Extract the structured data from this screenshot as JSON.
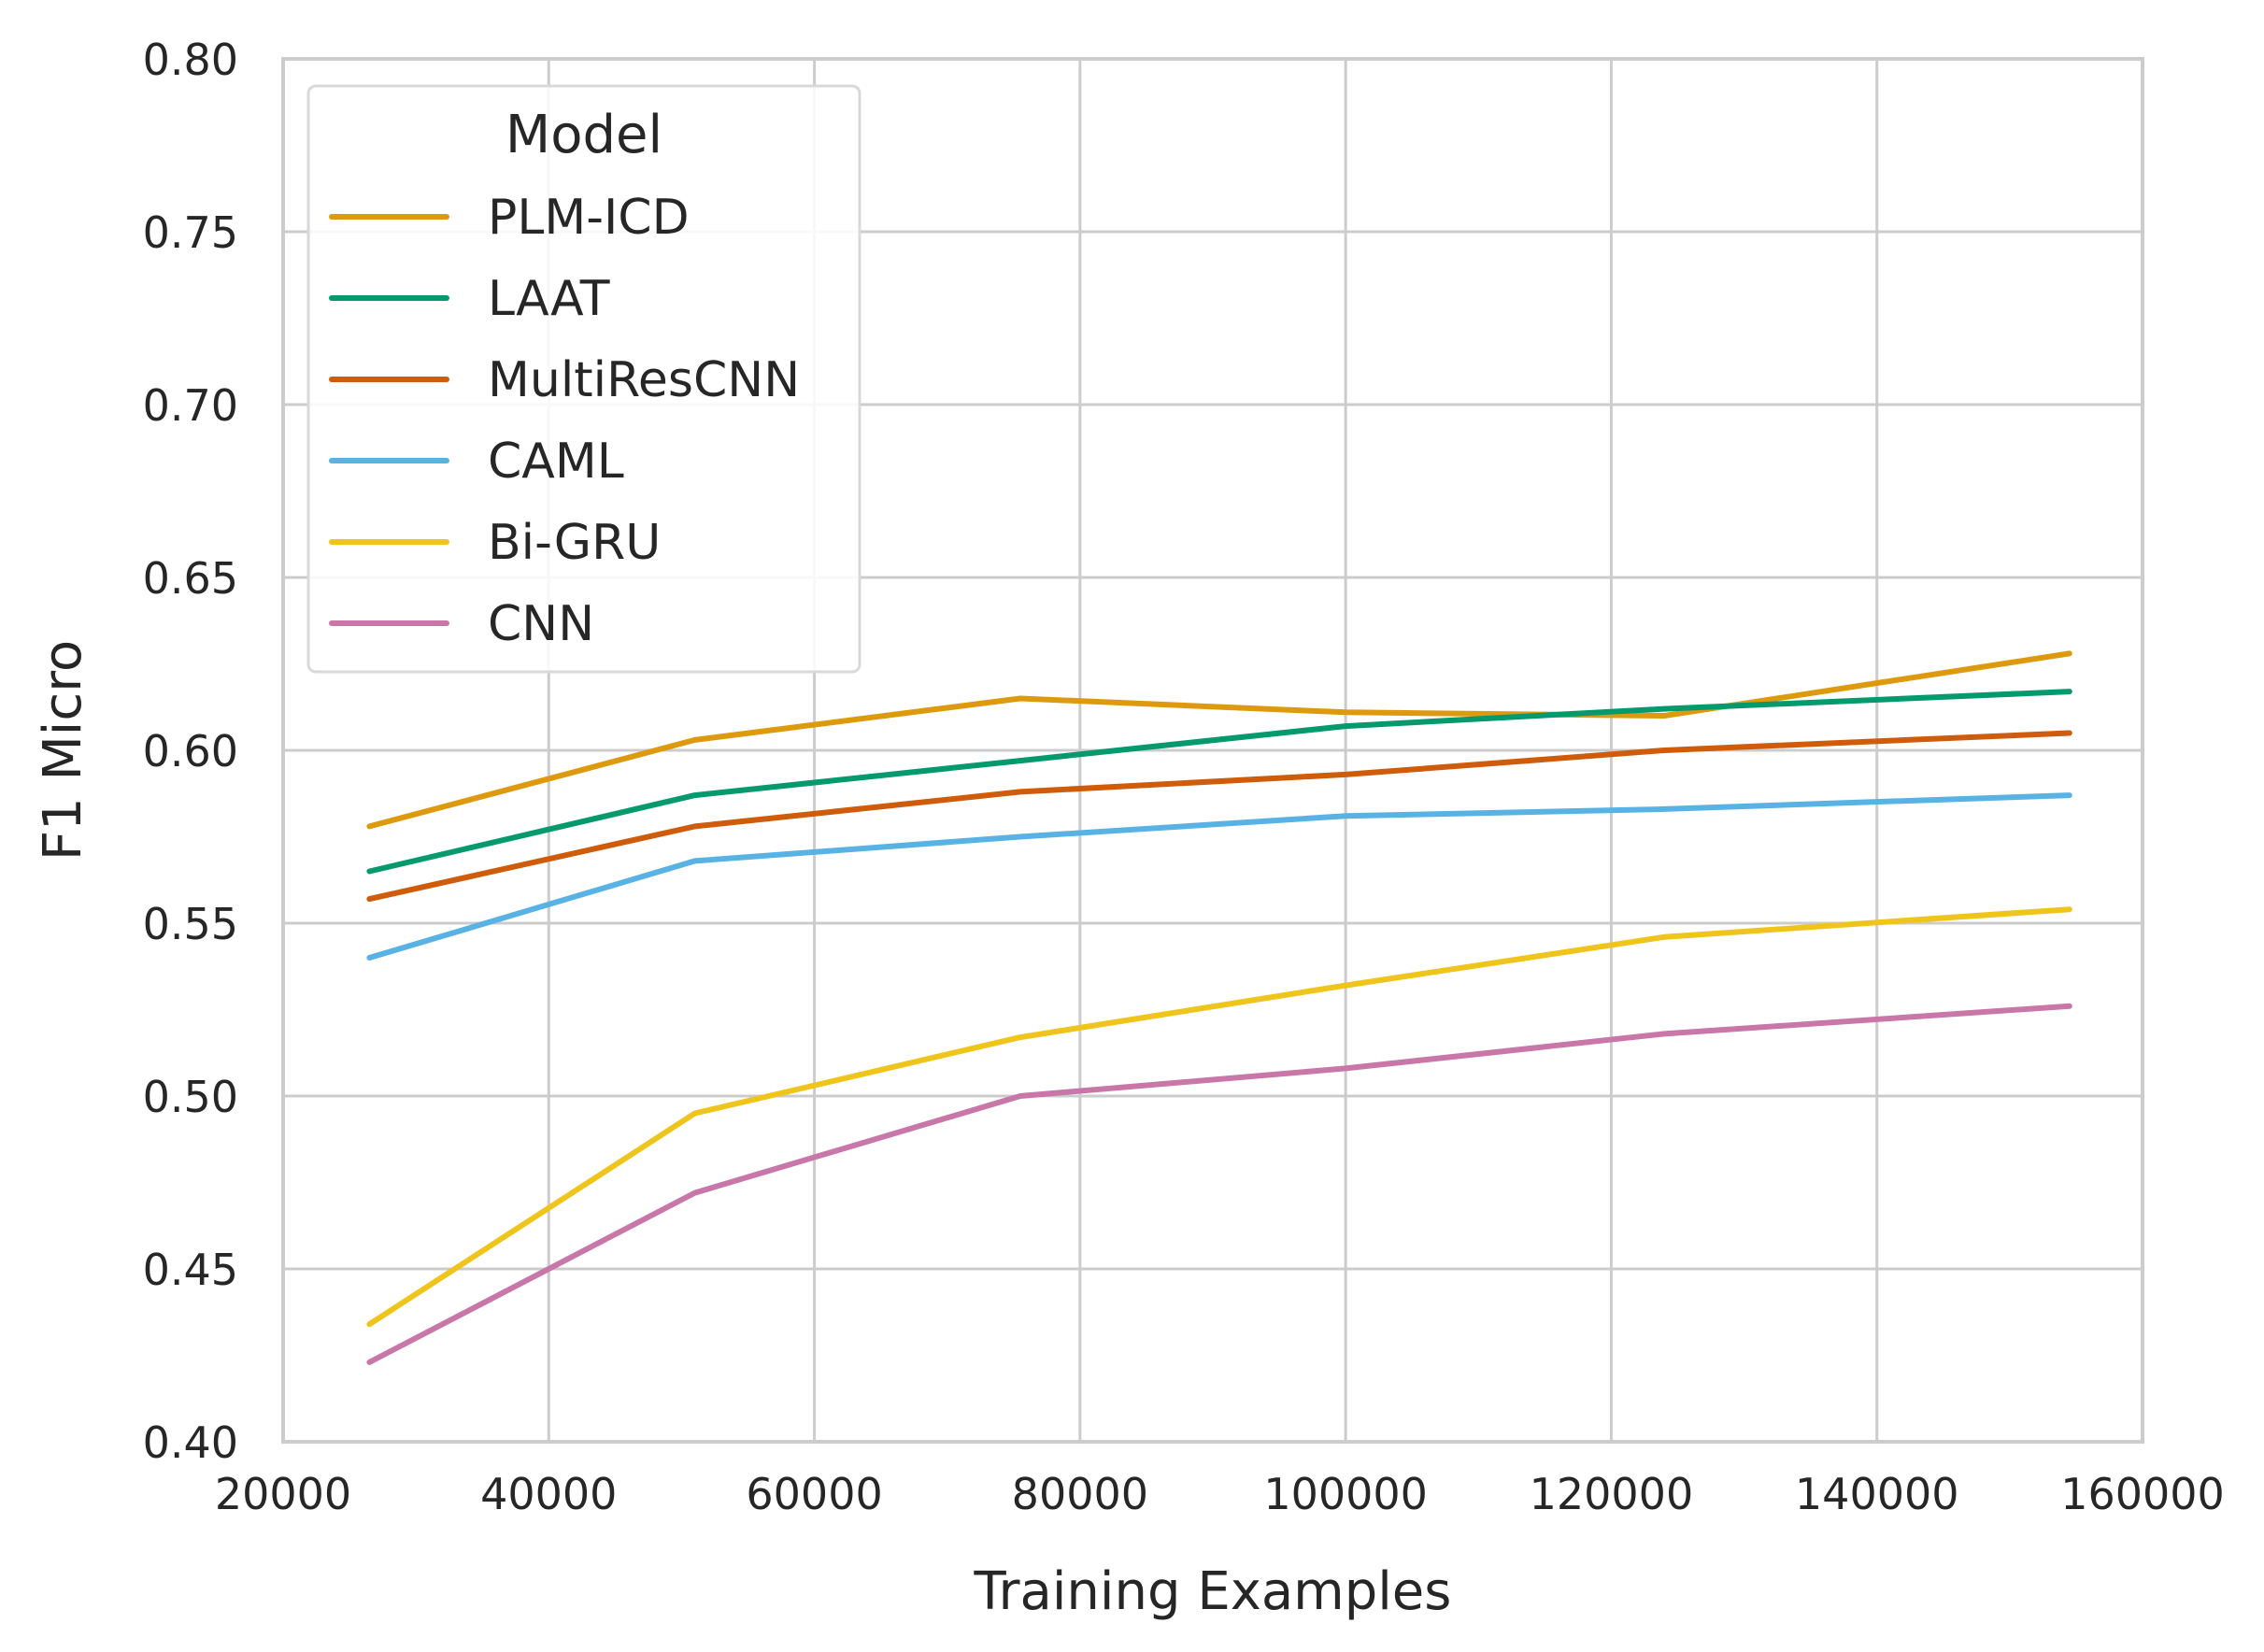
{
  "chart_data": {
    "type": "line",
    "xlabel": "Training Examples",
    "ylabel": "F1 Micro",
    "xlim": [
      20000,
      160000
    ],
    "ylim": [
      0.4,
      0.8
    ],
    "x_ticks": [
      20000,
      40000,
      60000,
      80000,
      100000,
      120000,
      140000,
      160000
    ],
    "x_tick_labels": [
      "20000",
      "40000",
      "60000",
      "80000",
      "100000",
      "120000",
      "140000",
      "160000"
    ],
    "y_ticks": [
      0.4,
      0.45,
      0.5,
      0.55,
      0.6,
      0.65,
      0.7,
      0.75,
      0.8
    ],
    "y_tick_labels": [
      "0.40",
      "0.45",
      "0.50",
      "0.55",
      "0.60",
      "0.65",
      "0.70",
      "0.75",
      "0.80"
    ],
    "grid": true,
    "legend": {
      "title": "Model",
      "placement": "upper-left"
    },
    "x": [
      26500,
      51000,
      75500,
      100000,
      124000,
      154500
    ],
    "series": [
      {
        "name": "PLM-ICD",
        "color": "#de9a0f",
        "values": [
          0.578,
          0.603,
          0.615,
          0.611,
          0.61,
          0.628
        ]
      },
      {
        "name": "LAAT",
        "color": "#059a6e",
        "values": [
          0.565,
          0.587,
          0.597,
          0.607,
          0.612,
          0.617
        ]
      },
      {
        "name": "MultiResCNN",
        "color": "#cf5c0b",
        "values": [
          0.557,
          0.578,
          0.588,
          0.593,
          0.6,
          0.605
        ]
      },
      {
        "name": "CAML",
        "color": "#58b3e4",
        "values": [
          0.54,
          0.568,
          0.575,
          0.581,
          0.583,
          0.587
        ]
      },
      {
        "name": "Bi-GRU",
        "color": "#efc51c",
        "values": [
          0.434,
          0.495,
          0.517,
          0.532,
          0.546,
          0.554
        ]
      },
      {
        "name": "CNN",
        "color": "#c977a8",
        "values": [
          0.423,
          0.472,
          0.5,
          0.508,
          0.518,
          0.526
        ]
      }
    ]
  }
}
